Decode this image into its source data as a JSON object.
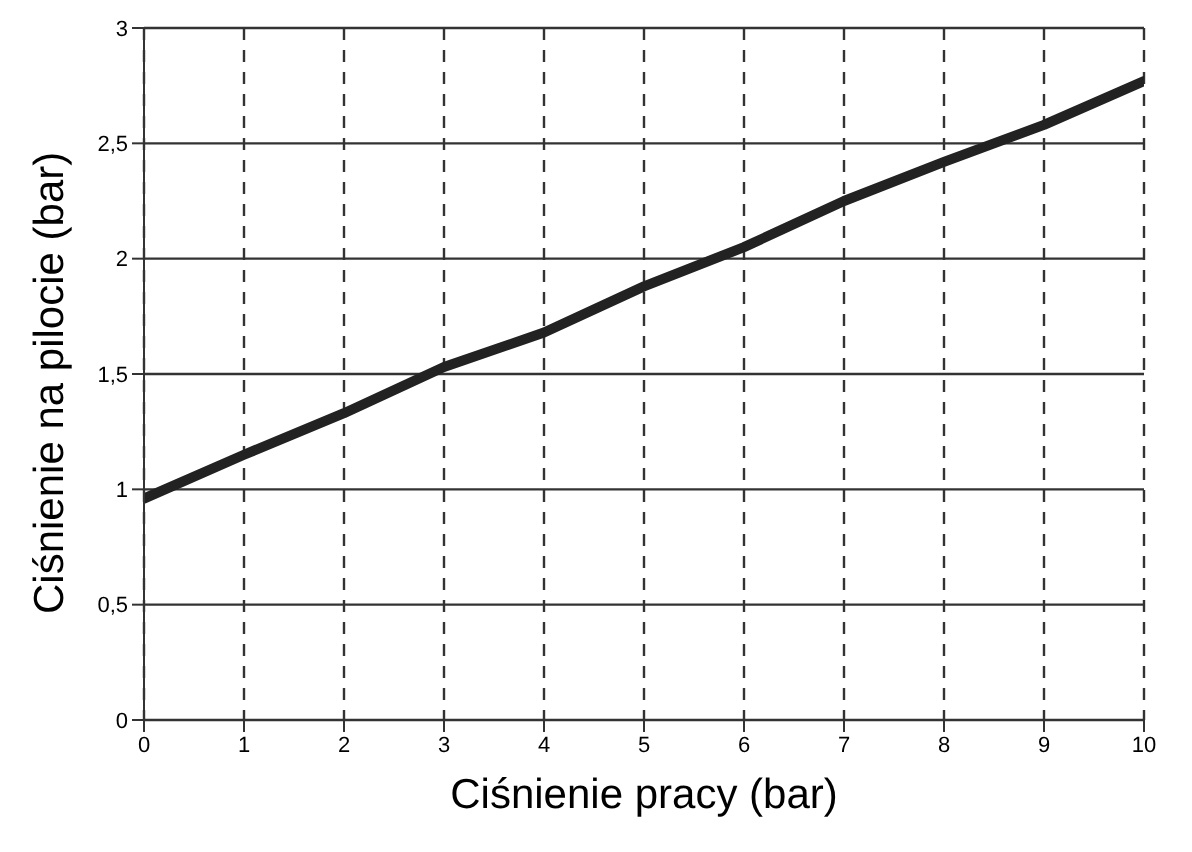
{
  "chart_data": {
    "type": "line",
    "xlabel": "Ciśnienie pracy (bar)",
    "ylabel": "Ciśnienie na pilocie (bar)",
    "x": [
      0,
      1,
      2,
      3,
      4,
      5,
      6,
      7,
      8,
      9,
      10
    ],
    "series": [
      {
        "color": "#222222",
        "values": [
          0.96,
          1.15,
          1.33,
          1.53,
          1.68,
          1.88,
          2.05,
          2.25,
          2.42,
          2.58,
          2.77
        ]
      }
    ],
    "xlim": [
      0,
      10
    ],
    "xticks": [
      0,
      1,
      2,
      3,
      4,
      5,
      6,
      7,
      8,
      9,
      10
    ],
    "ylim": [
      0,
      3
    ],
    "yticks": [
      0,
      {
        "value": 0.5,
        "label": "0,5"
      },
      1,
      {
        "value": 1.5,
        "label": "1,5"
      },
      2,
      {
        "value": 2.5,
        "label": "2,5"
      },
      3
    ],
    "grid": true,
    "marker": "none",
    "line_style": "solid",
    "legend": false
  }
}
